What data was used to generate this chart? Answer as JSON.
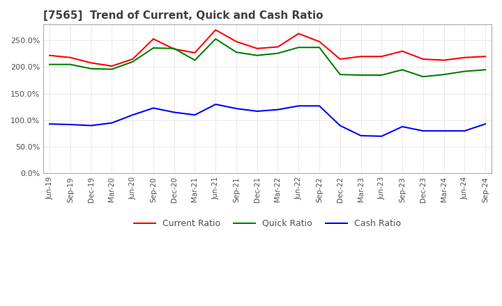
{
  "title": "[7565]  Trend of Current, Quick and Cash Ratio",
  "x_labels": [
    "Jun-19",
    "Sep-19",
    "Dec-19",
    "Mar-20",
    "Jun-20",
    "Sep-20",
    "Dec-20",
    "Mar-21",
    "Jun-21",
    "Sep-21",
    "Dec-21",
    "Mar-22",
    "Jun-22",
    "Sep-22",
    "Dec-22",
    "Mar-23",
    "Jun-23",
    "Sep-23",
    "Dec-23",
    "Mar-24",
    "Jun-24",
    "Sep-24"
  ],
  "current_ratio": [
    222,
    218,
    208,
    202,
    215,
    253,
    234,
    227,
    270,
    248,
    235,
    238,
    263,
    248,
    215,
    220,
    220,
    230,
    215,
    213,
    218,
    220
  ],
  "quick_ratio": [
    205,
    205,
    197,
    196,
    210,
    236,
    235,
    213,
    253,
    228,
    222,
    226,
    237,
    237,
    186,
    185,
    185,
    195,
    182,
    186,
    192,
    195
  ],
  "cash_ratio": [
    93,
    92,
    90,
    95,
    110,
    123,
    115,
    110,
    130,
    122,
    117,
    120,
    127,
    127,
    90,
    71,
    70,
    88,
    80,
    80,
    80,
    93
  ],
  "current_color": "#ff0000",
  "quick_color": "#008000",
  "cash_color": "#0000ff",
  "ylim": [
    0,
    280
  ],
  "yticks": [
    0,
    50,
    100,
    150,
    200,
    250
  ],
  "background_color": "#ffffff",
  "grid_color": "#bbbbbb",
  "title_color": "#404040",
  "legend_labels": [
    "Current Ratio",
    "Quick Ratio",
    "Cash Ratio"
  ]
}
